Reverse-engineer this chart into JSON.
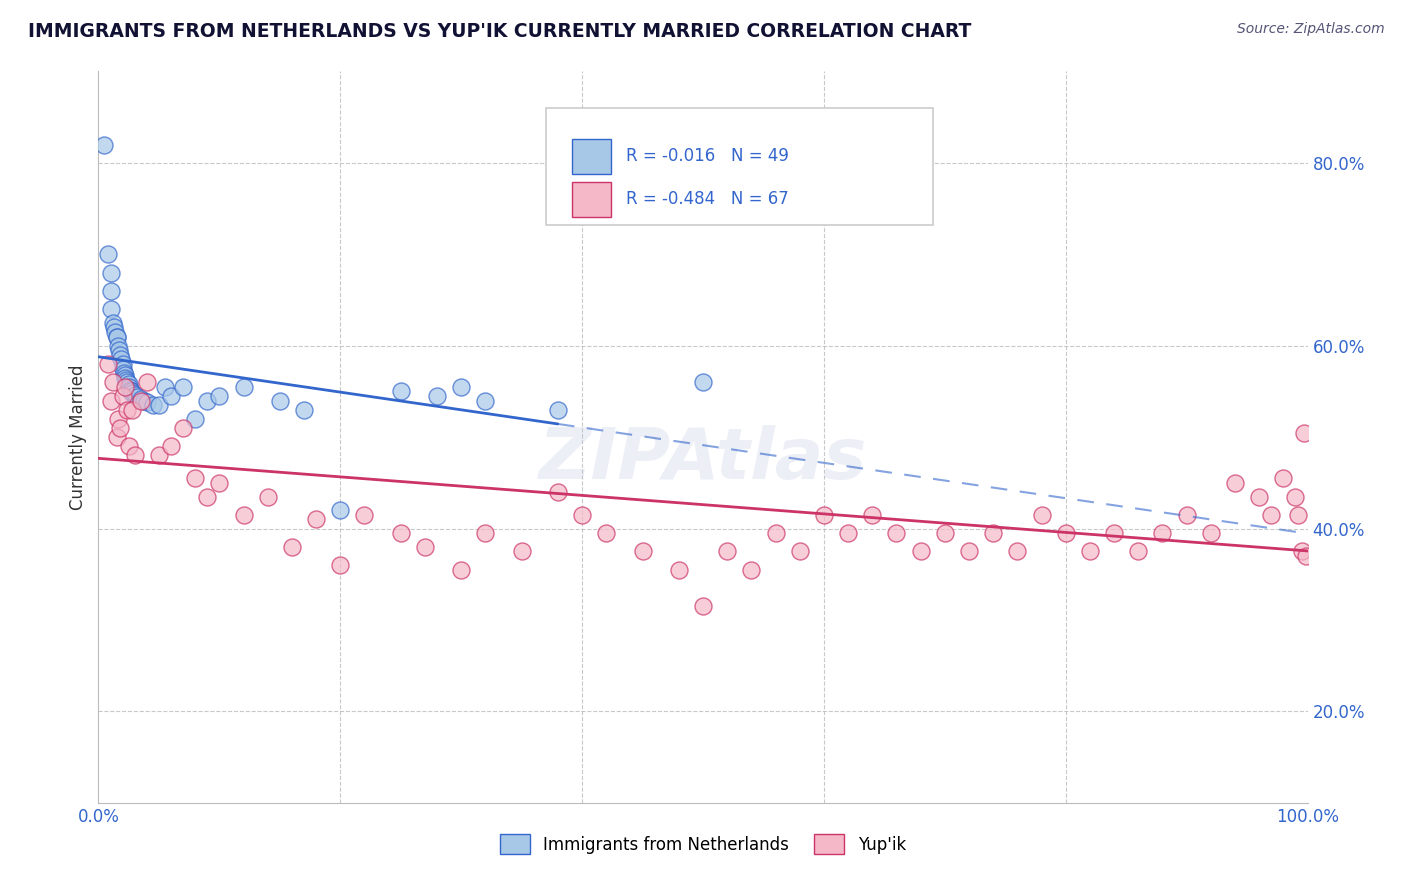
{
  "title": "IMMIGRANTS FROM NETHERLANDS VS YUP'IK CURRENTLY MARRIED CORRELATION CHART",
  "source": "Source: ZipAtlas.com",
  "ylabel": "Currently Married",
  "legend_label1": "Immigrants from Netherlands",
  "legend_label2": "Yup'ik",
  "r1": -0.016,
  "n1": 49,
  "r2": -0.484,
  "n2": 67,
  "color1": "#a8c8e8",
  "color2": "#f4b8c8",
  "line_color1": "#3366cc",
  "line_color2": "#cc3366",
  "background_color": "#ffffff",
  "grid_color": "#cccccc",
  "xlim": [
    0.0,
    1.0
  ],
  "ylim": [
    0.1,
    0.9
  ],
  "blue_points_x": [
    0.005,
    0.008,
    0.01,
    0.01,
    0.01,
    0.012,
    0.013,
    0.014,
    0.015,
    0.015,
    0.016,
    0.017,
    0.018,
    0.019,
    0.02,
    0.02,
    0.021,
    0.022,
    0.022,
    0.023,
    0.024,
    0.025,
    0.025,
    0.026,
    0.027,
    0.028,
    0.03,
    0.032,
    0.035,
    0.038,
    0.04,
    0.045,
    0.05,
    0.055,
    0.06,
    0.07,
    0.08,
    0.09,
    0.1,
    0.12,
    0.15,
    0.17,
    0.2,
    0.25,
    0.28,
    0.3,
    0.32,
    0.38,
    0.5
  ],
  "blue_points_y": [
    0.82,
    0.7,
    0.68,
    0.66,
    0.64,
    0.625,
    0.62,
    0.615,
    0.61,
    0.61,
    0.6,
    0.595,
    0.59,
    0.585,
    0.58,
    0.575,
    0.57,
    0.568,
    0.565,
    0.562,
    0.56,
    0.558,
    0.555,
    0.552,
    0.55,
    0.548,
    0.546,
    0.544,
    0.542,
    0.54,
    0.538,
    0.535,
    0.535,
    0.555,
    0.545,
    0.555,
    0.52,
    0.54,
    0.545,
    0.555,
    0.54,
    0.53,
    0.42,
    0.55,
    0.545,
    0.555,
    0.54,
    0.53,
    0.56
  ],
  "pink_points_x": [
    0.008,
    0.01,
    0.012,
    0.015,
    0.016,
    0.018,
    0.02,
    0.022,
    0.024,
    0.025,
    0.028,
    0.03,
    0.035,
    0.04,
    0.05,
    0.06,
    0.07,
    0.08,
    0.09,
    0.1,
    0.12,
    0.14,
    0.16,
    0.18,
    0.2,
    0.22,
    0.25,
    0.27,
    0.3,
    0.32,
    0.35,
    0.38,
    0.4,
    0.42,
    0.45,
    0.48,
    0.5,
    0.52,
    0.54,
    0.56,
    0.58,
    0.6,
    0.62,
    0.64,
    0.66,
    0.68,
    0.7,
    0.72,
    0.74,
    0.76,
    0.78,
    0.8,
    0.82,
    0.84,
    0.86,
    0.88,
    0.9,
    0.92,
    0.94,
    0.96,
    0.97,
    0.98,
    0.99,
    0.992,
    0.995,
    0.997,
    0.999
  ],
  "pink_points_y": [
    0.58,
    0.54,
    0.56,
    0.5,
    0.52,
    0.51,
    0.545,
    0.555,
    0.53,
    0.49,
    0.53,
    0.48,
    0.54,
    0.56,
    0.48,
    0.49,
    0.51,
    0.455,
    0.435,
    0.45,
    0.415,
    0.435,
    0.38,
    0.41,
    0.36,
    0.415,
    0.395,
    0.38,
    0.355,
    0.395,
    0.375,
    0.44,
    0.415,
    0.395,
    0.375,
    0.355,
    0.315,
    0.375,
    0.355,
    0.395,
    0.375,
    0.415,
    0.395,
    0.415,
    0.395,
    0.375,
    0.395,
    0.375,
    0.395,
    0.375,
    0.415,
    0.395,
    0.375,
    0.395,
    0.375,
    0.395,
    0.415,
    0.395,
    0.45,
    0.435,
    0.415,
    0.455,
    0.435,
    0.415,
    0.375,
    0.505,
    0.37
  ]
}
